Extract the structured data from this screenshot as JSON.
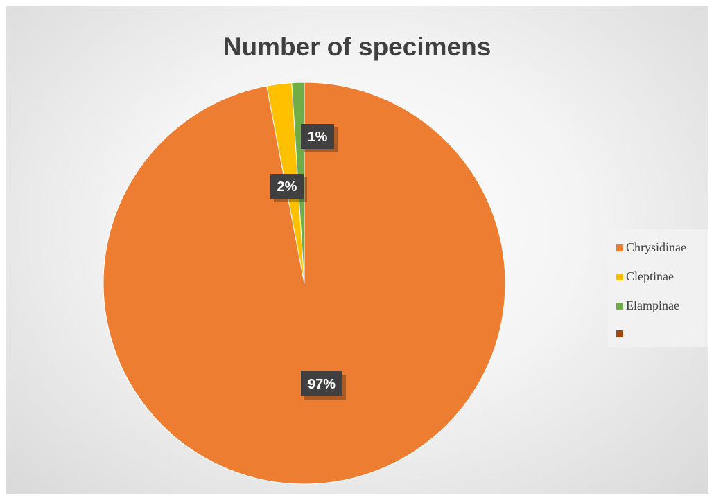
{
  "chart_data": {
    "type": "pie",
    "title": "Number of specimens",
    "categories": [
      "Chrysidinae",
      "Cleptinae",
      "Elampinae",
      ""
    ],
    "values": [
      97,
      2,
      1,
      0
    ],
    "data_labels": [
      "97%",
      "2%",
      "1%",
      ""
    ],
    "colors": [
      "#ED7D31",
      "#FFC000",
      "#70AD47",
      "#9E480E"
    ],
    "legend_position": "right",
    "start_angle": "top, clockwise"
  },
  "legend": {
    "items": [
      {
        "label": "Chrysidinae",
        "color": "#ED7D31"
      },
      {
        "label": "Cleptinae",
        "color": "#FFC000"
      },
      {
        "label": "Elampinae",
        "color": "#70AD47"
      },
      {
        "label": "",
        "color": "#9E480E"
      }
    ]
  }
}
